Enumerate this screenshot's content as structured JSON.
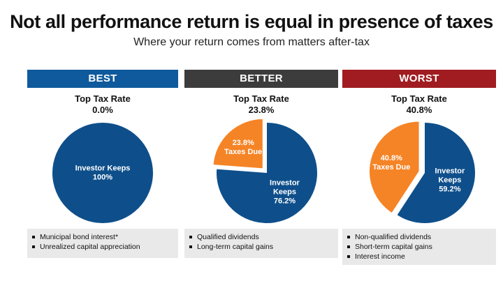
{
  "title": "Not all performance return is equal in presence of taxes",
  "subtitle": "Where your return comes from matters after-tax",
  "colors": {
    "best": "#0e5a9c",
    "better": "#3c3c3c",
    "worst": "#a01c20",
    "keeps": "#0e4f8b",
    "taxes": "#f58426"
  },
  "chart_data": [
    {
      "type": "pie",
      "header": "BEST",
      "rate_label": "Top Tax Rate",
      "rate_value": "0.0%",
      "slices": [
        {
          "label": "Investor Keeps",
          "value": 100,
          "value_label": "100%"
        }
      ],
      "notes": [
        "Municipal bond interest*",
        "Unrealized capital appreciation"
      ]
    },
    {
      "type": "pie",
      "header": "BETTER",
      "rate_label": "Top Tax Rate",
      "rate_value": "23.8%",
      "slices": [
        {
          "label": "Investor Keeps",
          "value": 76.2,
          "value_label": "76.2%"
        },
        {
          "label": "Taxes Due",
          "value": 23.8,
          "value_label": "23.8%"
        }
      ],
      "notes": [
        "Qualified dividends",
        "Long-term capital gains"
      ]
    },
    {
      "type": "pie",
      "header": "WORST",
      "rate_label": "Top Tax Rate",
      "rate_value": "40.8%",
      "slices": [
        {
          "label": "Investor Keeps",
          "value": 59.2,
          "value_label": "59.2%"
        },
        {
          "label": "Taxes Due",
          "value": 40.8,
          "value_label": "40.8%"
        }
      ],
      "notes": [
        "Non-qualified dividends",
        "Short-term capital gains",
        "Interest income"
      ]
    }
  ]
}
